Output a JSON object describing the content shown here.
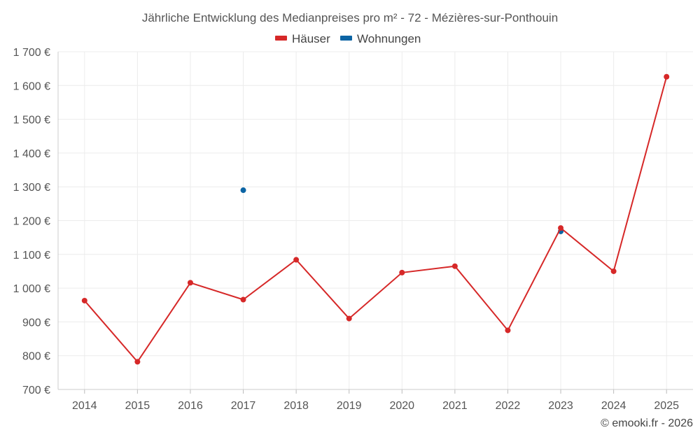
{
  "chart_data": {
    "type": "line",
    "title": "Jährliche Entwicklung des Medianpreises pro m² - 72 - Mézières-sur-Ponthouin",
    "categories": [
      "2014",
      "2015",
      "2016",
      "2017",
      "2018",
      "2019",
      "2020",
      "2021",
      "2022",
      "2023",
      "2024",
      "2025"
    ],
    "series": [
      {
        "name": "Häuser",
        "color": "#d62828",
        "values": [
          963,
          782,
          1016,
          966,
          1084,
          910,
          1046,
          1065,
          875,
          1178,
          1050,
          1626
        ]
      },
      {
        "name": "Wohnungen",
        "color": "#0b64a4",
        "values": [
          null,
          null,
          null,
          1290,
          null,
          null,
          null,
          null,
          null,
          1168,
          null,
          null
        ]
      }
    ],
    "ylim": [
      700,
      1700
    ],
    "yticks": [
      700,
      800,
      900,
      1000,
      1100,
      1200,
      1300,
      1400,
      1500,
      1600,
      1700
    ],
    "ytick_labels": [
      "700 €",
      "800 €",
      "900 €",
      "1 000 €",
      "1 100 €",
      "1 200 €",
      "1 300 €",
      "1 400 €",
      "1 500 €",
      "1 600 €",
      "1 700 €"
    ],
    "xlabel": "",
    "ylabel": "",
    "grid": true,
    "legend": "top-center"
  },
  "credit": "© emooki.fr - 2026"
}
